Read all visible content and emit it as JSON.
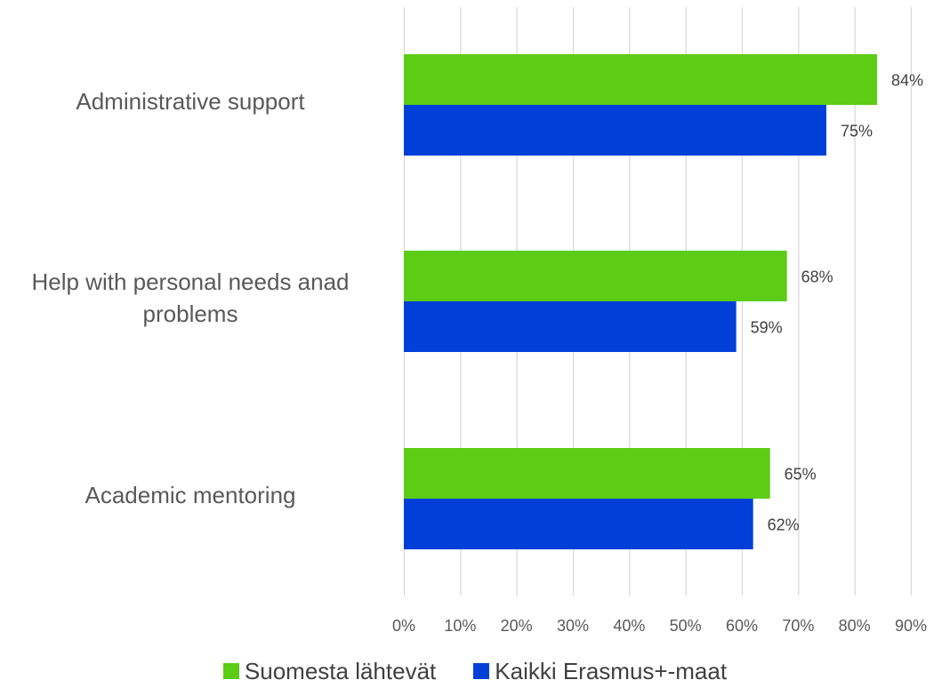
{
  "chart_data": {
    "type": "bar",
    "orientation": "horizontal",
    "categories": [
      "Administrative support",
      "Help with personal needs anad\nproblems",
      "Academic mentoring"
    ],
    "series": [
      {
        "name": "Suomesta lähtevät",
        "color": "#5ccc14",
        "values": [
          84,
          68,
          65
        ]
      },
      {
        "name": "Kaikki Erasmus+-maat",
        "color": "#0040d9",
        "values": [
          75,
          59,
          62
        ]
      }
    ],
    "value_labels": [
      [
        "84%",
        "68%",
        "65%"
      ],
      [
        "75%",
        "59%",
        "62%"
      ]
    ],
    "xlim": [
      0,
      90
    ],
    "x_ticks": [
      0,
      10,
      20,
      30,
      40,
      50,
      60,
      70,
      80,
      90
    ],
    "x_tick_labels": [
      "0%",
      "10%",
      "20%",
      "30%",
      "40%",
      "50%",
      "60%",
      "70%",
      "80%",
      "90%"
    ],
    "grid": "vertical",
    "grid_color": "#d9d9d9",
    "legend": "bottom",
    "title": "",
    "xlabel": "",
    "ylabel": ""
  }
}
